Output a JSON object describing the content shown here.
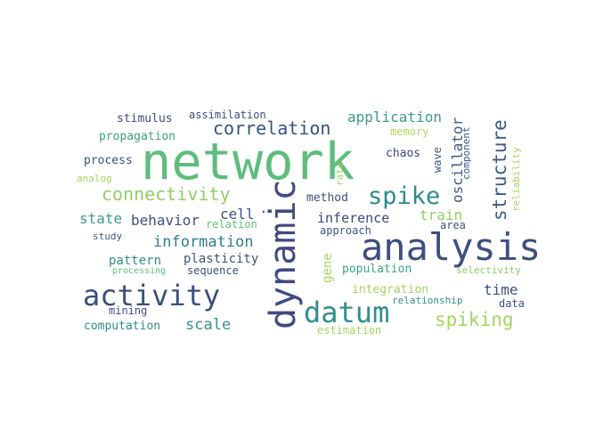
{
  "words": [
    {
      "text": "network",
      "color": "#5ebd7c"
    },
    {
      "text": "analysis",
      "color": "#3e4f7e"
    },
    {
      "text": "dynamic",
      "color": "#3f4b80"
    },
    {
      "text": "activity",
      "color": "#3b4e7c"
    },
    {
      "text": "datum",
      "color": "#2f8f8d"
    },
    {
      "text": "spike",
      "color": "#2e8b8c"
    },
    {
      "text": "connectivity",
      "color": "#8fcf62"
    },
    {
      "text": "correlation",
      "color": "#3a5282"
    },
    {
      "text": "structure",
      "color": "#3d5a84"
    },
    {
      "text": "spiking",
      "color": "#a5d55d"
    },
    {
      "text": "information",
      "color": "#2f7e8c"
    },
    {
      "text": "application",
      "color": "#3a9a86"
    },
    {
      "text": "oscillator",
      "color": "#3f5884"
    },
    {
      "text": "behavior",
      "color": "#3d4f7d"
    },
    {
      "text": "cell",
      "color": "#3d5181"
    },
    {
      "text": "state",
      "color": "#3a9c86"
    },
    {
      "text": "inference",
      "color": "#3b4a7b"
    },
    {
      "text": "train",
      "color": "#8fd063"
    },
    {
      "text": "scale",
      "color": "#36908a"
    },
    {
      "text": "time",
      "color": "#3a4e7f"
    },
    {
      "text": "pattern",
      "color": "#2f8d8a"
    },
    {
      "text": "plasticity",
      "color": "#3d5281"
    },
    {
      "text": "gene",
      "color": "#a4d45e"
    },
    {
      "text": "stimulus",
      "color": "#3a4c7d"
    },
    {
      "text": "assimilation",
      "color": "#3a4e7e"
    },
    {
      "text": "propagation",
      "color": "#3aa181"
    },
    {
      "text": "memory",
      "color": "#b1d757"
    },
    {
      "text": "process",
      "color": "#3a4f7e"
    },
    {
      "text": "chaos",
      "color": "#3d4a7a"
    },
    {
      "text": "wave",
      "color": "#3a5b85"
    },
    {
      "text": "component",
      "color": "#3a5a84"
    },
    {
      "text": "reliability",
      "color": "#a6d45c"
    },
    {
      "text": "analog",
      "color": "#a8d45d"
    },
    {
      "text": "rate",
      "color": "#a4d45e"
    },
    {
      "text": "method",
      "color": "#3e4f7e"
    },
    {
      "text": "relation",
      "color": "#5fc17c"
    },
    {
      "text": "approach",
      "color": "#3b5582"
    },
    {
      "text": "area",
      "color": "#3d5383"
    },
    {
      "text": "study",
      "color": "#3d5a84"
    },
    {
      "text": "sequence",
      "color": "#3b4e7d"
    },
    {
      "text": "processing",
      "color": "#5bbf7b"
    },
    {
      "text": "population",
      "color": "#3aa583"
    },
    {
      "text": "selectivity",
      "color": "#8bcf63"
    },
    {
      "text": "integration",
      "color": "#a4d45e"
    },
    {
      "text": "relationship",
      "color": "#2f8e8c"
    },
    {
      "text": "data",
      "color": "#3b4f7e"
    },
    {
      "text": "mining",
      "color": "#3d4f7e"
    },
    {
      "text": "computation",
      "color": "#2f8c8c"
    },
    {
      "text": "estimation",
      "color": "#a8d45d"
    }
  ]
}
